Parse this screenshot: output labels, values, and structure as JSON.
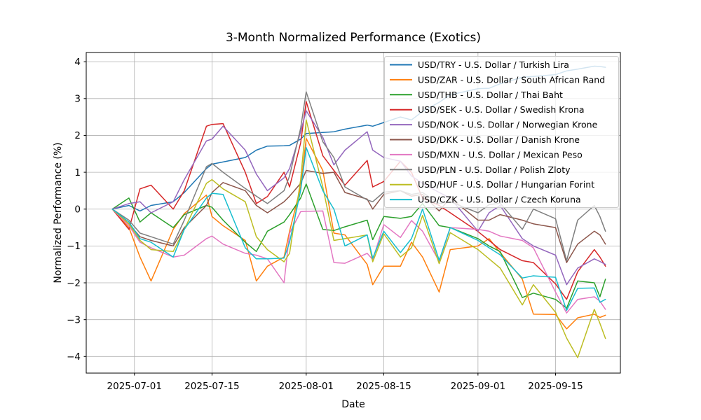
{
  "figure": {
    "title": "3-Month Normalized Performance (Exotics)",
    "xlabel": "Date",
    "ylabel": "Normalized Performance (%)"
  },
  "chart_data": {
    "type": "line",
    "title": "3-Month Normalized Performance (Exotics)",
    "xlabel": "Date",
    "ylabel": "Normalized Performance (%)",
    "grid": true,
    "legend_position": "upper right",
    "ylim": [
      -4.45,
      4.25
    ],
    "xlim_days": [
      -8.7,
      87.7
    ],
    "x_ticks": [
      {
        "day": 0,
        "label": "2025-07-01"
      },
      {
        "day": 14,
        "label": "2025-07-15"
      },
      {
        "day": 31,
        "label": "2025-08-01"
      },
      {
        "day": 45,
        "label": "2025-08-15"
      },
      {
        "day": 62,
        "label": "2025-09-01"
      },
      {
        "day": 76,
        "label": "2025-09-15"
      }
    ],
    "y_ticks": [
      {
        "v": 4,
        "label": "4"
      },
      {
        "v": 3,
        "label": "3"
      },
      {
        "v": 2,
        "label": "2"
      },
      {
        "v": 1,
        "label": "1"
      },
      {
        "v": 0,
        "label": "0"
      },
      {
        "v": -1,
        "label": "−1"
      },
      {
        "v": -2,
        "label": "−2"
      },
      {
        "v": -3,
        "label": "−3"
      },
      {
        "v": -4,
        "label": "−4"
      }
    ],
    "x_dates": [
      "2025-06-27",
      "2025-06-30",
      "2025-07-02",
      "2025-07-04",
      "2025-07-08",
      "2025-07-10",
      "2025-07-14",
      "2025-07-15",
      "2025-07-17",
      "2025-07-21",
      "2025-07-23",
      "2025-07-25",
      "2025-07-28",
      "2025-07-29",
      "2025-07-31",
      "2025-08-01",
      "2025-08-04",
      "2025-08-06",
      "2025-08-08",
      "2025-08-12",
      "2025-08-13",
      "2025-08-15",
      "2025-08-18",
      "2025-08-20",
      "2025-08-22",
      "2025-08-25",
      "2025-08-27",
      "2025-09-01",
      "2025-09-03",
      "2025-09-05",
      "2025-09-09",
      "2025-09-11",
      "2025-09-15",
      "2025-09-17",
      "2025-09-19",
      "2025-09-22",
      "2025-09-23",
      "2025-09-24"
    ],
    "x_days": [
      -4,
      -1,
      1,
      3,
      7,
      9,
      13,
      14,
      16,
      20,
      22,
      24,
      27,
      28,
      30,
      31,
      34,
      36,
      38,
      42,
      43,
      45,
      48,
      50,
      52,
      55,
      57,
      62,
      64,
      66,
      70,
      72,
      76,
      78,
      80,
      83,
      84,
      85
    ],
    "series": [
      {
        "name": "USD/TRY - U.S. Dollar / Turkish Lira",
        "color": "#1f77b4",
        "values": [
          0,
          0.1,
          -0.05,
          0.1,
          0.2,
          0.45,
          1.1,
          1.22,
          1.28,
          1.4,
          1.6,
          1.71,
          1.72,
          1.73,
          1.9,
          2.05,
          2.08,
          2.1,
          2.17,
          2.28,
          2.25,
          2.35,
          2.5,
          2.42,
          2.65,
          2.9,
          3.1,
          3.27,
          3.28,
          3.4,
          3.58,
          3.6,
          3.65,
          3.75,
          3.8,
          3.88,
          3.87,
          3.85
        ]
      },
      {
        "name": "USD/ZAR - U.S. Dollar / South African Rand",
        "color": "#ff7f0e",
        "values": [
          0,
          -0.5,
          -1.3,
          -1.95,
          -0.55,
          -0.12,
          0.38,
          -0.2,
          -0.45,
          -0.85,
          -1.95,
          -1.55,
          -1.3,
          -0.6,
          0.6,
          1.92,
          1.05,
          -0.65,
          -0.7,
          -1.5,
          -2.05,
          -1.55,
          -1.55,
          -0.9,
          -1.3,
          -2.25,
          -1.1,
          -1.0,
          -0.8,
          -1.18,
          -1.9,
          -2.85,
          -2.86,
          -3.25,
          -2.95,
          -2.85,
          -2.94,
          -2.88
        ]
      },
      {
        "name": "USD/THB - U.S. Dollar / Thai Baht",
        "color": "#2ca02c",
        "values": [
          0,
          0.3,
          -0.35,
          -0.1,
          -0.5,
          -0.15,
          0.1,
          0.05,
          -0.3,
          -0.9,
          -1.15,
          -0.6,
          -0.35,
          -0.15,
          0.3,
          0.68,
          -0.55,
          -0.58,
          -0.48,
          -0.3,
          -0.83,
          -0.2,
          -0.25,
          -0.2,
          0.15,
          -0.45,
          -0.5,
          -0.8,
          -1.0,
          -1.15,
          -2.4,
          -2.28,
          -2.45,
          -2.69,
          -1.95,
          -2.0,
          -2.38,
          -1.9
        ]
      },
      {
        "name": "USD/SEK - U.S. Dollar / Swedish Krona",
        "color": "#d62728",
        "values": [
          0,
          -0.55,
          0.55,
          0.65,
          0.0,
          0.5,
          2.25,
          2.3,
          2.32,
          1.0,
          0.15,
          0.34,
          1.0,
          0.6,
          1.8,
          2.92,
          1.45,
          1.05,
          0.65,
          1.32,
          0.6,
          0.75,
          1.3,
          1.0,
          0.3,
          0.1,
          -0.1,
          -0.61,
          -0.85,
          -1.1,
          -1.4,
          -1.45,
          -2.03,
          -2.45,
          -1.7,
          -1.1,
          -1.3,
          -1.55
        ]
      },
      {
        "name": "USD/NOK - U.S. Dollar / Norwegian Krone",
        "color": "#9467bd",
        "values": [
          0,
          0.15,
          0.2,
          -0.1,
          0.2,
          0.8,
          1.85,
          1.9,
          2.25,
          1.6,
          0.95,
          0.5,
          0.85,
          1.1,
          2.1,
          2.67,
          1.95,
          1.2,
          1.6,
          2.1,
          1.6,
          1.4,
          1.3,
          0.9,
          0.7,
          0.45,
          0.3,
          -0.6,
          -0.1,
          0.1,
          -0.8,
          -1.0,
          -1.25,
          -2.05,
          -1.6,
          -1.35,
          -1.42,
          -1.5
        ]
      },
      {
        "name": "USD/DKK - U.S. Dollar / Danish Krone",
        "color": "#8c564b",
        "values": [
          0,
          -0.4,
          -0.75,
          -0.85,
          -1.0,
          -0.5,
          0.1,
          0.45,
          0.72,
          0.5,
          0.1,
          -0.1,
          0.2,
          0.35,
          0.7,
          1.05,
          0.97,
          1.0,
          0.45,
          0.27,
          0.0,
          0.4,
          0.5,
          0.35,
          0.4,
          -0.05,
          0.3,
          -0.3,
          -0.3,
          -0.15,
          -0.3,
          -0.4,
          -0.5,
          -1.45,
          -0.95,
          -0.6,
          -0.7,
          -0.95
        ]
      },
      {
        "name": "USD/MXN - U.S. Dollar / Mexican Peso",
        "color": "#e377c2",
        "values": [
          0,
          -0.45,
          -0.9,
          -1.05,
          -1.3,
          -1.25,
          -0.8,
          -0.73,
          -0.95,
          -1.2,
          -1.25,
          -1.35,
          -2.0,
          -0.65,
          -0.07,
          -0.06,
          -0.05,
          -1.45,
          -1.47,
          -1.2,
          -1.37,
          -0.42,
          -0.77,
          -0.31,
          -0.6,
          -1.42,
          -0.5,
          -0.55,
          -0.6,
          -0.73,
          -0.85,
          -1.05,
          -2.25,
          -2.82,
          -2.45,
          -2.38,
          -2.5,
          -2.72
        ]
      },
      {
        "name": "USD/PLN - U.S. Dollar / Polish Zloty",
        "color": "#7f7f7f",
        "values": [
          0,
          -0.3,
          -0.65,
          -0.75,
          -0.95,
          -0.3,
          1.15,
          1.24,
          1.0,
          0.56,
          0.35,
          0.15,
          0.5,
          0.9,
          2.2,
          3.18,
          1.83,
          1.4,
          0.6,
          0.25,
          0.2,
          0.46,
          0.5,
          0.4,
          0.45,
          0.15,
          0.2,
          -0.1,
          0.12,
          0.16,
          -0.55,
          0.0,
          -0.26,
          -1.4,
          -0.3,
          0.1,
          -0.2,
          -0.6
        ]
      },
      {
        "name": "USD/HUF - U.S. Dollar / Hungarian Forint",
        "color": "#bcbd22",
        "values": [
          0,
          -0.4,
          -0.85,
          -1.1,
          -1.15,
          -0.55,
          0.7,
          0.8,
          0.55,
          0.2,
          -0.75,
          -1.1,
          -1.43,
          -1.2,
          0.8,
          2.42,
          0.6,
          -0.85,
          -0.8,
          -0.7,
          -1.43,
          -0.67,
          -1.3,
          -1.05,
          -0.17,
          -1.48,
          -0.64,
          -1.1,
          -1.35,
          -1.6,
          -2.6,
          -2.05,
          -2.8,
          -3.5,
          -4.03,
          -2.72,
          -3.1,
          -3.51
        ]
      },
      {
        "name": "USD/CZK - U.S. Dollar / Czech Koruna",
        "color": "#17becf",
        "values": [
          0,
          -0.35,
          -0.8,
          -0.9,
          -1.3,
          -0.55,
          0.3,
          0.43,
          0.4,
          -1.05,
          -1.35,
          -1.35,
          -1.33,
          -0.9,
          0.5,
          1.67,
          0.5,
          0.0,
          -1.0,
          -0.7,
          -1.33,
          -0.6,
          -1.18,
          -0.8,
          0.0,
          -1.39,
          -0.5,
          -0.85,
          -1.05,
          -1.24,
          -1.87,
          -1.81,
          -1.85,
          -2.75,
          -2.15,
          -2.14,
          -2.53,
          -2.45
        ]
      }
    ]
  }
}
